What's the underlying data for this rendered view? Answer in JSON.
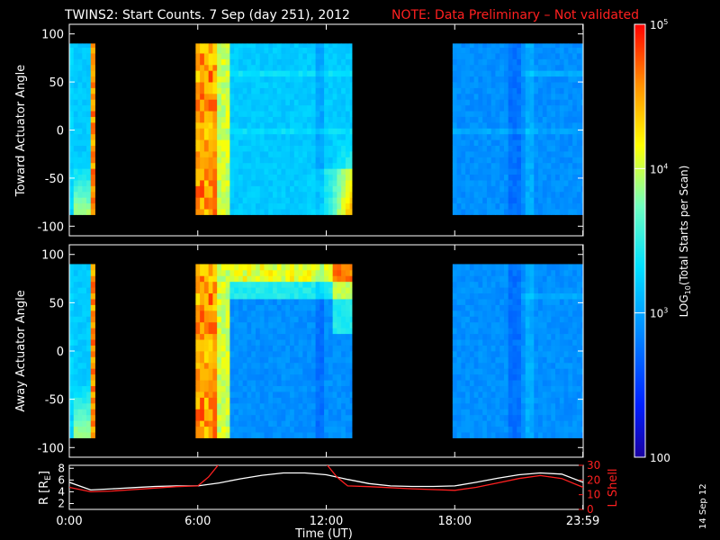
{
  "title": {
    "main": "TWINS2: Start Counts.  7 Sep (day 251), 2012",
    "note": "NOTE: Data Preliminary – Not validated",
    "note_color": "#ff2020"
  },
  "stamp": "14 Sep 12",
  "colorbar": {
    "label_main": "LOG",
    "label_sub": "10",
    "label_rest": "(Total Starts per Scan)",
    "ticks": [
      {
        "value": 100,
        "label": "100"
      },
      {
        "value": 1000,
        "label": "10",
        "sup": "3"
      },
      {
        "value": 10000,
        "label": "10",
        "sup": "4"
      },
      {
        "value": 100000,
        "label": "10",
        "sup": "5"
      }
    ],
    "range": [
      100,
      100000
    ]
  },
  "chart_data": [
    {
      "type": "heatmap",
      "name": "toward",
      "ylabel": "Toward Actuator Angle",
      "ylim": [
        -110,
        110
      ],
      "yticks": [
        100,
        50,
        0,
        -50,
        -100
      ],
      "data_ylim": [
        -88,
        90
      ],
      "segments": [
        {
          "start_h": 0.0,
          "end_h": 1.2,
          "profile": "edge_high"
        },
        {
          "start_h": 5.9,
          "end_h": 13.2,
          "profile": "main_pass"
        },
        {
          "start_h": 17.9,
          "end_h": 24.0,
          "profile": "quiet"
        }
      ]
    },
    {
      "type": "heatmap",
      "name": "away",
      "ylabel": "Away Actuator Angle",
      "ylim": [
        -110,
        110
      ],
      "yticks": [
        100,
        50,
        0,
        -50,
        -100
      ],
      "data_ylim": [
        -90,
        90
      ],
      "segments": [
        {
          "start_h": 0.0,
          "end_h": 1.2,
          "profile": "edge_high"
        },
        {
          "start_h": 5.9,
          "end_h": 13.2,
          "profile": "main_pass_top"
        },
        {
          "start_h": 17.9,
          "end_h": 24.0,
          "profile": "quiet"
        }
      ]
    },
    {
      "type": "line",
      "name": "orbit",
      "xlabel": "Time (UT)",
      "xlim": [
        0,
        24
      ],
      "xticks": [
        {
          "value": 0,
          "label": "0:00"
        },
        {
          "value": 6,
          "label": "6:00"
        },
        {
          "value": 12,
          "label": "12:00"
        },
        {
          "value": 18,
          "label": "18:00"
        },
        {
          "value": 23.983,
          "label": "23:59"
        }
      ],
      "left_axis": {
        "label": "R [R",
        "label_sub": "E",
        "label_end": "]",
        "ylim": [
          1,
          8.5
        ],
        "ticks": [
          2,
          4,
          6,
          8
        ]
      },
      "right_axis": {
        "label": "L Shell",
        "ylim": [
          0,
          30
        ],
        "ticks": [
          0,
          10,
          20,
          30
        ],
        "color": "#ff2020"
      },
      "series": [
        {
          "name": "R",
          "axis": "left",
          "color": "#ffffff",
          "x": [
            0,
            1,
            2,
            3,
            4,
            5,
            6,
            7,
            8,
            9,
            10,
            11,
            12,
            13,
            14,
            15,
            16,
            17,
            18,
            19,
            20,
            21,
            22,
            23,
            24
          ],
          "y": [
            5.6,
            4.3,
            4.5,
            4.7,
            4.9,
            5.0,
            5.0,
            5.5,
            6.2,
            6.8,
            7.2,
            7.2,
            6.9,
            6.1,
            5.4,
            5.0,
            4.9,
            4.9,
            5.0,
            5.6,
            6.3,
            6.9,
            7.2,
            7.0,
            5.6
          ]
        },
        {
          "name": "L Shell",
          "axis": "right",
          "color": "#ff2020",
          "x": [
            0,
            1,
            2,
            3,
            4,
            5,
            6,
            6.5,
            7,
            12,
            12.5,
            13,
            14,
            16,
            18,
            19,
            20,
            21,
            22,
            23,
            24
          ],
          "y": [
            15,
            12,
            12.5,
            13.5,
            14.5,
            15.5,
            16,
            22,
            31,
            31,
            22,
            16,
            15.5,
            14,
            13,
            15,
            18,
            21,
            23,
            21,
            15
          ]
        }
      ]
    }
  ]
}
